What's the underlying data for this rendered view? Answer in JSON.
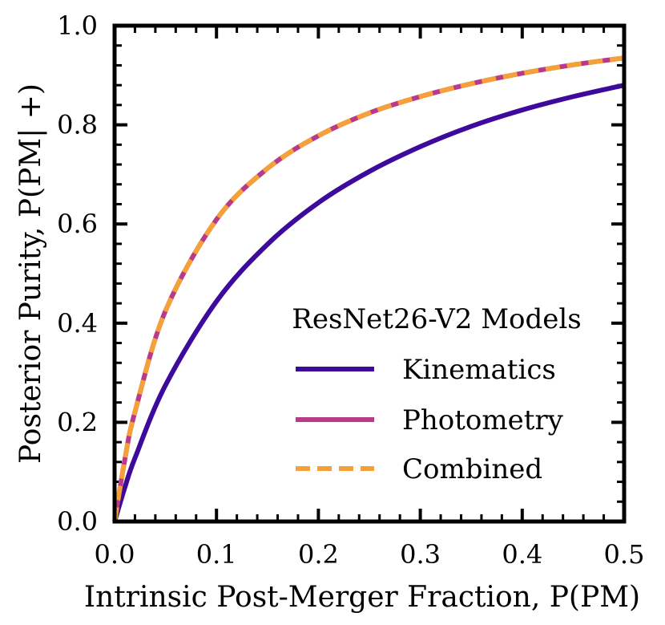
{
  "chart_data": {
    "type": "line",
    "title": "",
    "xlabel": "Intrinsic Post-Merger Fraction, P(PM)",
    "ylabel": "Posterior Purity, P(PM| +)",
    "xlim": [
      0.0,
      0.5
    ],
    "ylim": [
      0.0,
      1.0
    ],
    "xticks": [
      0.0,
      0.1,
      0.2,
      0.3,
      0.4,
      0.5
    ],
    "yticks": [
      0.0,
      0.2,
      0.4,
      0.6,
      0.8,
      1.0
    ],
    "xtick_labels": [
      "0.0",
      "0.1",
      "0.2",
      "0.3",
      "0.4",
      "0.5"
    ],
    "ytick_labels": [
      "0.0",
      "0.2",
      "0.4",
      "0.6",
      "0.8",
      "1.0"
    ],
    "x": [
      0.0,
      0.01,
      0.02,
      0.05,
      0.1,
      0.15,
      0.2,
      0.25,
      0.3,
      0.35,
      0.4,
      0.45,
      0.5
    ],
    "series": [
      {
        "name": "Kinematics",
        "color": "#3d0a9c",
        "style": "solid",
        "values": [
          0.0,
          0.068,
          0.128,
          0.275,
          0.444,
          0.559,
          0.643,
          0.706,
          0.756,
          0.797,
          0.83,
          0.857,
          0.88
        ]
      },
      {
        "name": "Photometry",
        "color": "#b83a8b",
        "style": "solid",
        "values": [
          0.0,
          0.124,
          0.221,
          0.425,
          0.609,
          0.712,
          0.778,
          0.824,
          0.857,
          0.883,
          0.904,
          0.921,
          0.935
        ]
      },
      {
        "name": "Combined",
        "color": "#f5a13a",
        "style": "dashed",
        "values": [
          0.0,
          0.124,
          0.221,
          0.425,
          0.609,
          0.712,
          0.778,
          0.824,
          0.857,
          0.883,
          0.904,
          0.921,
          0.935
        ]
      }
    ],
    "legend": {
      "title": "ResNet26-V2 Models",
      "position": "lower-right"
    },
    "grid": false
  }
}
